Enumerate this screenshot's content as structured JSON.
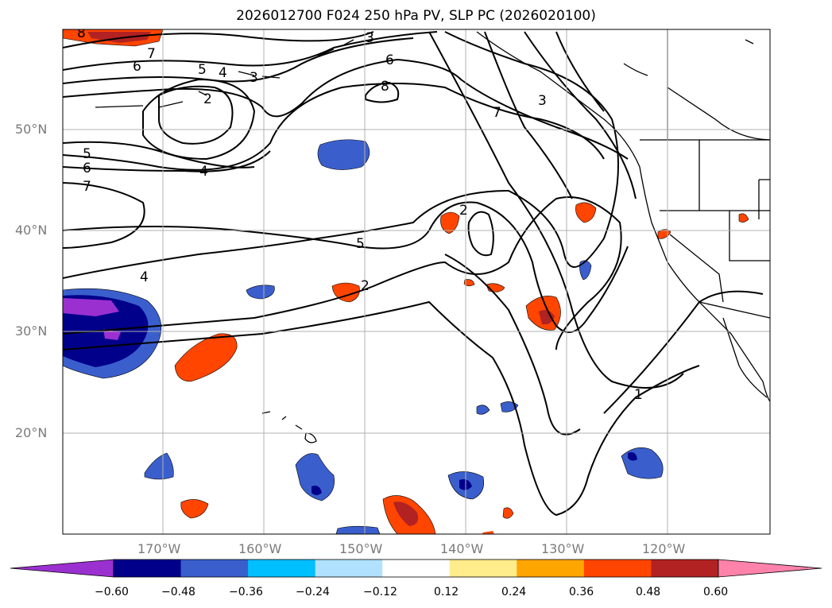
{
  "title": "2026012700 F024 250 hPa PV, SLP PC (2026020100)",
  "lat_labels": [
    "50°N",
    "40°N",
    "30°N",
    "20°N"
  ],
  "lon_labels": [
    "170°W",
    "160°W",
    "150°W",
    "140°W",
    "130°W",
    "120°W"
  ],
  "contour_labels": [
    "8",
    "3",
    "7",
    "6",
    "5",
    "4",
    "3",
    "2",
    "6",
    "8",
    "3",
    "7",
    "5",
    "6",
    "7",
    "4",
    "2",
    "5",
    "4",
    "2",
    "1"
  ],
  "colorbar": {
    "ticks": [
      "−0.60",
      "−0.48",
      "−0.36",
      "−0.24",
      "−0.12",
      "0.12",
      "0.24",
      "0.36",
      "0.48",
      "0.60"
    ],
    "colors": [
      "#9b30d0",
      "#00008b",
      "#3a5fcd",
      "#00bfff",
      "#b0e2ff",
      "#ffffff",
      "#ffec8b",
      "#ffa500",
      "#ff4500",
      "#b22222",
      "#ff82ab"
    ]
  },
  "colors": {
    "land_line": "#000000",
    "grid": "#b0b0b0",
    "contour": "#000000"
  }
}
